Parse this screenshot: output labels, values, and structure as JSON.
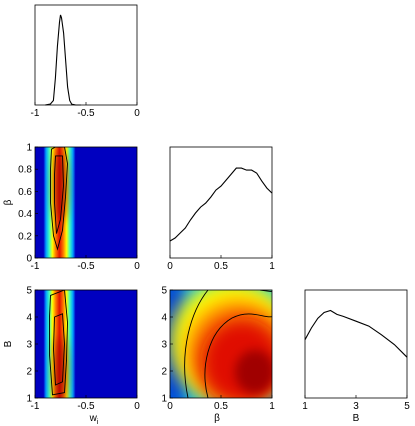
{
  "chart_data": [
    {
      "id": "w_marginal",
      "type": "line",
      "xlim": [
        -1,
        0
      ],
      "x_ticks": [
        "-1",
        "-0.5",
        "0"
      ],
      "x": [
        -0.9,
        -0.85,
        -0.82,
        -0.8,
        -0.78,
        -0.76,
        -0.75,
        -0.74,
        -0.72,
        -0.7,
        -0.68,
        -0.66,
        -0.64,
        -0.6,
        -0.55
      ],
      "y": [
        0.0,
        0.01,
        0.05,
        0.3,
        0.65,
        0.92,
        1.0,
        0.97,
        0.8,
        0.5,
        0.2,
        0.05,
        0.01,
        0.0,
        0.0
      ]
    },
    {
      "id": "w_beta_joint",
      "type": "heatmap",
      "xlabel": "",
      "ylabel": "β",
      "xlim": [
        -1,
        0
      ],
      "ylim": [
        0,
        1
      ],
      "x_ticks": [
        "-1",
        "-0.5",
        "0"
      ],
      "y_ticks": [
        "0",
        "0.2",
        "0.4",
        "0.6",
        "0.8",
        "1"
      ],
      "mode_x": -0.76,
      "mode_y": 0.65
    },
    {
      "id": "beta_marginal",
      "type": "line",
      "xlim": [
        0,
        1
      ],
      "x_ticks": [
        "0",
        "0.5",
        "1"
      ],
      "x": [
        0,
        0.05,
        0.1,
        0.15,
        0.2,
        0.25,
        0.3,
        0.35,
        0.4,
        0.45,
        0.5,
        0.55,
        0.6,
        0.65,
        0.7,
        0.75,
        0.8,
        0.85,
        0.9,
        0.95,
        1.0
      ],
      "y": [
        0.17,
        0.2,
        0.25,
        0.3,
        0.38,
        0.45,
        0.51,
        0.55,
        0.61,
        0.68,
        0.72,
        0.78,
        0.84,
        0.9,
        0.9,
        0.88,
        0.88,
        0.85,
        0.77,
        0.7,
        0.65
      ]
    },
    {
      "id": "w_B_joint",
      "type": "heatmap",
      "xlabel": "w_i",
      "ylabel": "B",
      "xlim": [
        -1,
        0
      ],
      "ylim": [
        1,
        5
      ],
      "x_ticks": [
        "-1",
        "-0.5",
        "0"
      ],
      "y_ticks": [
        "1",
        "2",
        "3",
        "4",
        "5"
      ],
      "mode_x": -0.76,
      "mode_y": 2.0
    },
    {
      "id": "beta_B_joint",
      "type": "heatmap",
      "xlabel": "β",
      "ylabel": "",
      "xlim": [
        0,
        1
      ],
      "ylim": [
        1,
        5
      ],
      "x_ticks": [
        "0",
        "0.5",
        "1"
      ],
      "y_ticks": [
        "1",
        "2",
        "3",
        "4",
        "5"
      ],
      "mode_x": 0.75,
      "mode_y": 2.0
    },
    {
      "id": "B_marginal",
      "type": "line",
      "xlabel": "B",
      "xlim": [
        1,
        5
      ],
      "x_ticks": [
        "1",
        "3",
        "5"
      ],
      "x": [
        1.0,
        1.25,
        1.5,
        1.75,
        2.0,
        2.25,
        2.5,
        3.0,
        3.5,
        4.0,
        4.5,
        5.0
      ],
      "y": [
        0.6,
        0.72,
        0.82,
        0.88,
        0.9,
        0.86,
        0.84,
        0.79,
        0.74,
        0.65,
        0.55,
        0.42
      ]
    }
  ]
}
